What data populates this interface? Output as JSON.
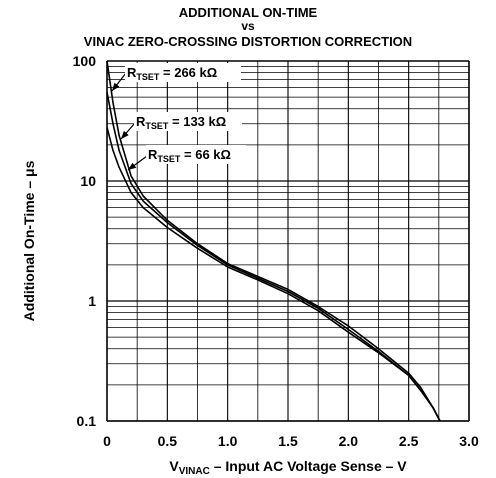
{
  "chart_data": {
    "type": "line",
    "title_line1": "ADDITIONAL ON-TIME",
    "title_line2": "vs",
    "title_line3": "VINAC ZERO-CROSSING DISTORTION CORRECTION",
    "xlabel_main": "V",
    "xlabel_sub": "VINAC",
    "xlabel_rest": " – Input AC Voltage Sense – V",
    "ylabel": "Additional On-Time – μs",
    "xlim": [
      0,
      3.0
    ],
    "ylim": [
      0.1,
      100
    ],
    "yscale": "log",
    "grid": true,
    "x_ticks": [
      "0",
      "0.5",
      "1.0",
      "1.5",
      "2.0",
      "2.5",
      "3.0"
    ],
    "y_ticks": [
      "0.1",
      "1",
      "10",
      "100"
    ],
    "annotations": [
      {
        "prefix": "R",
        "sub": "TSET",
        "rest": " = 266 kΩ"
      },
      {
        "prefix": "R",
        "sub": "TSET",
        "rest": " = 133 kΩ"
      },
      {
        "prefix": "R",
        "sub": "TSET",
        "rest": " = 66 kΩ"
      }
    ],
    "series": [
      {
        "name": "RTSET = 266 kΩ",
        "x": [
          0.0,
          0.05,
          0.1,
          0.2,
          0.3,
          0.5,
          0.75,
          1.0,
          1.25,
          1.5,
          1.75,
          2.0,
          2.25,
          2.5,
          2.6,
          2.7,
          2.76
        ],
        "y": [
          100,
          45,
          24,
          11,
          7.5,
          4.7,
          3.0,
          2.05,
          1.6,
          1.25,
          0.9,
          0.62,
          0.4,
          0.25,
          0.19,
          0.13,
          0.1
        ]
      },
      {
        "name": "RTSET = 133 kΩ",
        "x": [
          0.0,
          0.05,
          0.1,
          0.2,
          0.3,
          0.5,
          0.75,
          1.0,
          1.25,
          1.5,
          1.75,
          2.0,
          2.25,
          2.5,
          2.6,
          2.7,
          2.76
        ],
        "y": [
          55,
          30,
          18,
          9.5,
          6.8,
          4.5,
          2.9,
          2.0,
          1.55,
          1.2,
          0.87,
          0.58,
          0.38,
          0.24,
          0.18,
          0.13,
          0.1
        ]
      },
      {
        "name": "RTSET = 66 kΩ",
        "x": [
          0.0,
          0.05,
          0.1,
          0.2,
          0.3,
          0.5,
          0.75,
          1.0,
          1.25,
          1.5,
          1.75,
          2.0,
          2.25,
          2.5,
          2.6,
          2.7,
          2.76
        ],
        "y": [
          28,
          18,
          13,
          8.0,
          6.0,
          4.1,
          2.75,
          1.92,
          1.5,
          1.15,
          0.83,
          0.55,
          0.37,
          0.24,
          0.18,
          0.13,
          0.1
        ]
      }
    ]
  }
}
